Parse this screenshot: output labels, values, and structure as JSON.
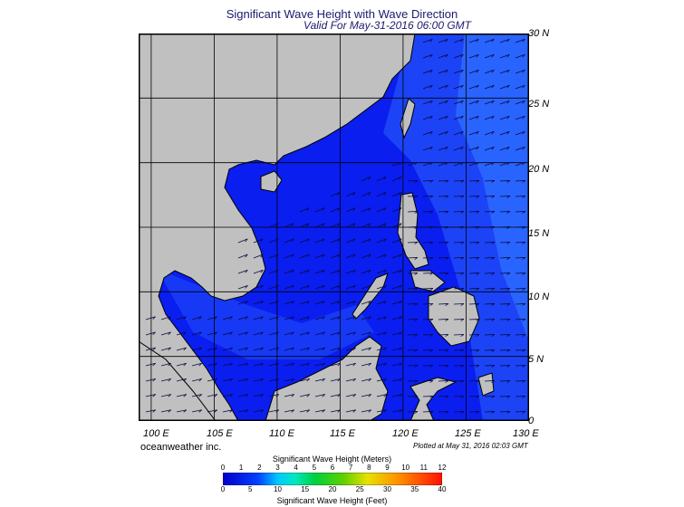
{
  "header": {
    "title": "Significant Wave Height with Wave Direction",
    "subtitle": "Valid For May-31-2016 06:00 GMT"
  },
  "map": {
    "lon_range": [
      99,
      130
    ],
    "lat_range": [
      0,
      30
    ],
    "lat_labels": [
      "30 N",
      "25 N",
      "20 N",
      "15 N",
      "10 N",
      "5 N",
      "0"
    ],
    "lon_labels": [
      "100 E",
      "105 E",
      "110 E",
      "115 E",
      "120 E",
      "125 E",
      "130 E"
    ],
    "colors": {
      "land": "#c0c0c0",
      "ocean_low": "#0a1ef0",
      "ocean_mid": "#1c44f6",
      "ocean_high": "#2a64ff",
      "arrows": "#0a0a40",
      "grid": "#000000"
    }
  },
  "footer": {
    "credit": "oceanweather inc.",
    "plotted": "Plotted at May 31, 2016 02:03 GMT"
  },
  "legend": {
    "title_meters": "Significant Wave Height (Meters)",
    "title_feet": "Significant Wave Height (Feet)",
    "meter_ticks": [
      "0",
      "1",
      "2",
      "3",
      "4",
      "5",
      "6",
      "7",
      "8",
      "9",
      "10",
      "11",
      "12"
    ],
    "feet_ticks": [
      "0",
      "5",
      "10",
      "15",
      "20",
      "25",
      "30",
      "35",
      "40"
    ]
  }
}
